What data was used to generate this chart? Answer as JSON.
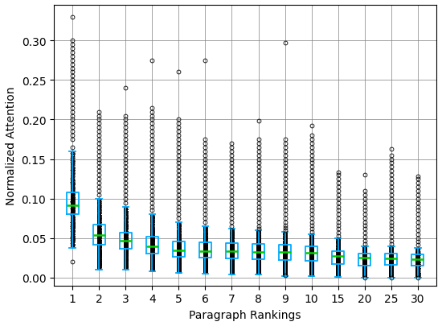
{
  "categories": [
    1,
    2,
    3,
    4,
    5,
    6,
    7,
    8,
    9,
    10,
    15,
    20,
    25,
    30
  ],
  "tick_labels": [
    "1",
    "2",
    "3",
    "4",
    "5",
    "6",
    "7",
    "8",
    "9",
    "10",
    "15",
    "20",
    "25",
    "30"
  ],
  "box_stats": [
    {
      "q1": 0.08,
      "median": 0.092,
      "q3": 0.108,
      "whislo": 0.038,
      "whishi": 0.16,
      "fliers_above": [
        0.165,
        0.175,
        0.18,
        0.185,
        0.19,
        0.195,
        0.2,
        0.205,
        0.21,
        0.215,
        0.22,
        0.225,
        0.23,
        0.235,
        0.24,
        0.245,
        0.25,
        0.255,
        0.26,
        0.265,
        0.27,
        0.275,
        0.28,
        0.285,
        0.29,
        0.295,
        0.3,
        0.33
      ],
      "fliers_below": [
        0.02
      ]
    },
    {
      "q1": 0.042,
      "median": 0.054,
      "q3": 0.067,
      "whislo": 0.01,
      "whishi": 0.1,
      "fliers_above": [
        0.105,
        0.11,
        0.115,
        0.12,
        0.125,
        0.13,
        0.135,
        0.14,
        0.145,
        0.15,
        0.155,
        0.16,
        0.165,
        0.17,
        0.175,
        0.18,
        0.185,
        0.19,
        0.195,
        0.2,
        0.205,
        0.21
      ],
      "fliers_below": []
    },
    {
      "q1": 0.037,
      "median": 0.047,
      "q3": 0.057,
      "whislo": 0.01,
      "whishi": 0.09,
      "fliers_above": [
        0.095,
        0.1,
        0.105,
        0.11,
        0.115,
        0.12,
        0.125,
        0.13,
        0.135,
        0.14,
        0.145,
        0.15,
        0.155,
        0.16,
        0.165,
        0.17,
        0.175,
        0.18,
        0.185,
        0.19,
        0.195,
        0.2,
        0.205,
        0.24
      ],
      "fliers_below": []
    },
    {
      "q1": 0.03,
      "median": 0.04,
      "q3": 0.052,
      "whislo": 0.008,
      "whishi": 0.08,
      "fliers_above": [
        0.085,
        0.09,
        0.095,
        0.1,
        0.105,
        0.11,
        0.115,
        0.12,
        0.125,
        0.13,
        0.135,
        0.14,
        0.145,
        0.15,
        0.155,
        0.16,
        0.165,
        0.17,
        0.175,
        0.18,
        0.185,
        0.19,
        0.195,
        0.2,
        0.205,
        0.21,
        0.215,
        0.275
      ],
      "fliers_below": []
    },
    {
      "q1": 0.026,
      "median": 0.035,
      "q3": 0.046,
      "whislo": 0.006,
      "whishi": 0.07,
      "fliers_above": [
        0.075,
        0.08,
        0.085,
        0.09,
        0.095,
        0.1,
        0.105,
        0.11,
        0.115,
        0.12,
        0.125,
        0.13,
        0.135,
        0.14,
        0.145,
        0.15,
        0.155,
        0.16,
        0.165,
        0.17,
        0.175,
        0.18,
        0.185,
        0.19,
        0.195,
        0.2,
        0.26
      ],
      "fliers_below": []
    },
    {
      "q1": 0.025,
      "median": 0.034,
      "q3": 0.045,
      "whislo": 0.005,
      "whishi": 0.065,
      "fliers_above": [
        0.07,
        0.075,
        0.08,
        0.085,
        0.09,
        0.095,
        0.1,
        0.105,
        0.11,
        0.115,
        0.12,
        0.125,
        0.13,
        0.135,
        0.14,
        0.145,
        0.15,
        0.155,
        0.16,
        0.165,
        0.17,
        0.175,
        0.275
      ],
      "fliers_below": []
    },
    {
      "q1": 0.024,
      "median": 0.034,
      "q3": 0.044,
      "whislo": 0.004,
      "whishi": 0.062,
      "fliers_above": [
        0.065,
        0.07,
        0.075,
        0.08,
        0.085,
        0.09,
        0.095,
        0.1,
        0.105,
        0.11,
        0.115,
        0.12,
        0.125,
        0.13,
        0.135,
        0.14,
        0.145,
        0.15,
        0.155,
        0.16,
        0.165,
        0.17
      ],
      "fliers_below": []
    },
    {
      "q1": 0.023,
      "median": 0.033,
      "q3": 0.043,
      "whislo": 0.004,
      "whishi": 0.06,
      "fliers_above": [
        0.062,
        0.065,
        0.07,
        0.075,
        0.08,
        0.085,
        0.09,
        0.095,
        0.1,
        0.105,
        0.11,
        0.115,
        0.12,
        0.125,
        0.13,
        0.135,
        0.14,
        0.145,
        0.15,
        0.155,
        0.16,
        0.165,
        0.17,
        0.175,
        0.198
      ],
      "fliers_below": []
    },
    {
      "q1": 0.022,
      "median": 0.033,
      "q3": 0.042,
      "whislo": 0.002,
      "whishi": 0.058,
      "fliers_above": [
        0.06,
        0.063,
        0.066,
        0.07,
        0.075,
        0.08,
        0.085,
        0.09,
        0.095,
        0.1,
        0.105,
        0.11,
        0.115,
        0.12,
        0.125,
        0.13,
        0.135,
        0.14,
        0.145,
        0.15,
        0.155,
        0.16,
        0.165,
        0.17,
        0.175,
        0.297
      ],
      "fliers_below": [
        0.003
      ]
    },
    {
      "q1": 0.021,
      "median": 0.032,
      "q3": 0.04,
      "whislo": 0.002,
      "whishi": 0.055,
      "fliers_above": [
        0.058,
        0.062,
        0.066,
        0.07,
        0.075,
        0.08,
        0.085,
        0.09,
        0.095,
        0.1,
        0.105,
        0.11,
        0.115,
        0.12,
        0.125,
        0.13,
        0.135,
        0.14,
        0.145,
        0.15,
        0.155,
        0.16,
        0.165,
        0.17,
        0.175,
        0.18,
        0.192
      ],
      "fliers_below": []
    },
    {
      "q1": 0.017,
      "median": 0.027,
      "q3": 0.034,
      "whislo": 0.001,
      "whishi": 0.05,
      "fliers_above": [
        0.053,
        0.057,
        0.062,
        0.066,
        0.07,
        0.075,
        0.08,
        0.085,
        0.09,
        0.095,
        0.1,
        0.105,
        0.11,
        0.115,
        0.12,
        0.125,
        0.13,
        0.133
      ],
      "fliers_below": []
    },
    {
      "q1": 0.015,
      "median": 0.025,
      "q3": 0.03,
      "whislo": 0.0,
      "whishi": 0.04,
      "fliers_above": [
        0.043,
        0.047,
        0.052,
        0.057,
        0.062,
        0.066,
        0.07,
        0.075,
        0.08,
        0.085,
        0.09,
        0.095,
        0.1,
        0.105,
        0.11,
        0.13
      ],
      "fliers_below": [
        0.0
      ]
    },
    {
      "q1": 0.016,
      "median": 0.024,
      "q3": 0.03,
      "whislo": 0.0,
      "whishi": 0.04,
      "fliers_above": [
        0.043,
        0.047,
        0.052,
        0.057,
        0.062,
        0.066,
        0.07,
        0.075,
        0.08,
        0.085,
        0.09,
        0.095,
        0.1,
        0.105,
        0.11,
        0.115,
        0.12,
        0.125,
        0.13,
        0.135,
        0.14,
        0.145,
        0.15,
        0.155,
        0.163
      ],
      "fliers_below": [
        0.0
      ]
    },
    {
      "q1": 0.015,
      "median": 0.023,
      "q3": 0.029,
      "whislo": 0.0,
      "whishi": 0.038,
      "fliers_above": [
        0.042,
        0.046,
        0.05,
        0.055,
        0.06,
        0.065,
        0.07,
        0.075,
        0.08,
        0.085,
        0.09,
        0.095,
        0.1,
        0.105,
        0.11,
        0.115,
        0.12,
        0.125,
        0.128
      ],
      "fliers_below": [
        0.0
      ]
    }
  ],
  "box_color": "#00aaff",
  "median_color": "#00cc00",
  "flier_color": "black",
  "xlabel": "Paragraph Rankings",
  "ylabel": "Normalized Attention",
  "ylim": [
    -0.01,
    0.345
  ],
  "yticks": [
    0.0,
    0.05,
    0.1,
    0.15,
    0.2,
    0.25,
    0.3
  ],
  "grid": true,
  "figsize": [
    5.5,
    4.06
  ],
  "dpi": 100,
  "n_dense_points": 8000
}
